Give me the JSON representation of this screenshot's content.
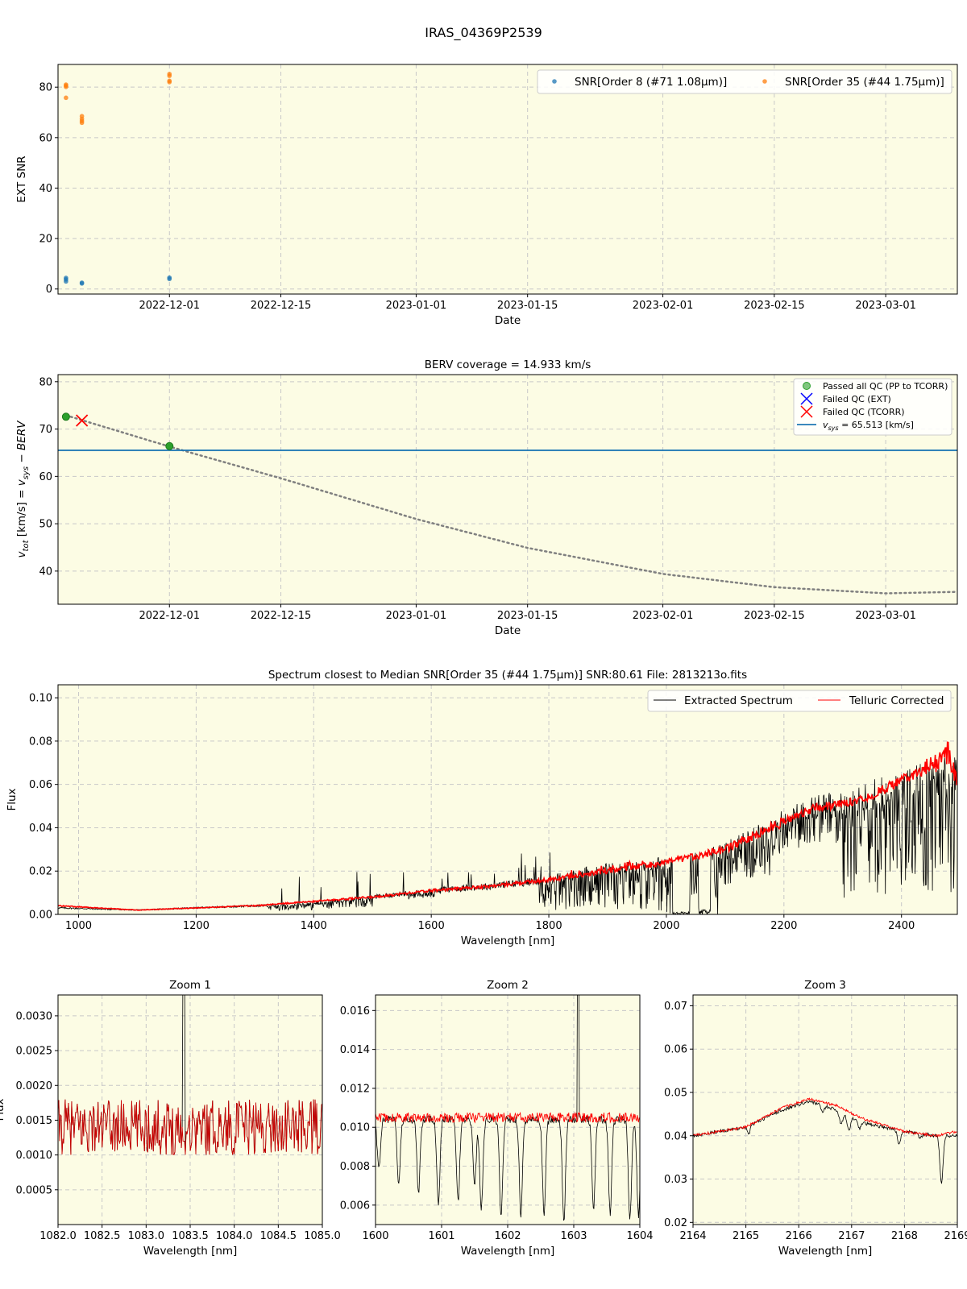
{
  "figure": {
    "title": "IRAS_04369P2539"
  },
  "chart_data": [
    {
      "id": "snr",
      "type": "scatter",
      "title": "",
      "xlabel": "Date",
      "ylabel": "EXT SNR",
      "x_range": [
        "2022-11-17",
        "2023-03-10"
      ],
      "ylim": [
        -2,
        89
      ],
      "x_ticks": [
        "2022-12-01",
        "2022-12-15",
        "2023-01-01",
        "2023-01-15",
        "2023-02-01",
        "2023-02-15",
        "2023-03-01"
      ],
      "y_ticks": [
        0,
        20,
        40,
        60,
        80
      ],
      "grid": true,
      "legend_position": "top-right",
      "series": [
        {
          "name": "SNR[Order 8 (#71 1.08μm)]",
          "color": "#1f77b4",
          "points": [
            [
              "2022-11-18",
              3.0
            ],
            [
              "2022-11-18",
              3.8
            ],
            [
              "2022-11-18",
              4.4
            ],
            [
              "2022-11-20",
              2.2
            ],
            [
              "2022-11-20",
              2.5
            ],
            [
              "2022-12-01",
              4.0
            ],
            [
              "2022-12-01",
              4.5
            ]
          ]
        },
        {
          "name": "SNR[Order 35 (#44 1.75μm)]",
          "color": "#ff7f0e",
          "points": [
            [
              "2022-11-18",
              75.8
            ],
            [
              "2022-11-18",
              80.1
            ],
            [
              "2022-11-18",
              80.6
            ],
            [
              "2022-11-18",
              81.0
            ],
            [
              "2022-11-20",
              65.9
            ],
            [
              "2022-11-20",
              66.6
            ],
            [
              "2022-11-20",
              67.4
            ],
            [
              "2022-11-20",
              68.5
            ],
            [
              "2022-12-01",
              82.0
            ],
            [
              "2022-12-01",
              82.5
            ],
            [
              "2022-12-01",
              84.5
            ],
            [
              "2022-12-01",
              85.2
            ]
          ]
        }
      ]
    },
    {
      "id": "berv",
      "type": "scatter",
      "title": "BERV coverage = 14.933 km/s",
      "xlabel": "Date",
      "ylabel": "v_tot [km/s] = v_sys − BERV",
      "x_range": [
        "2022-11-17",
        "2023-03-10"
      ],
      "ylim": [
        33,
        81.5
      ],
      "x_ticks": [
        "2022-12-01",
        "2022-12-15",
        "2023-01-01",
        "2023-01-15",
        "2023-02-01",
        "2023-02-15",
        "2023-03-01"
      ],
      "y_ticks": [
        40,
        50,
        60,
        70,
        80
      ],
      "grid": true,
      "legend_position": "top-right",
      "v_sys": 65.513,
      "legend": {
        "passed": "Passed all QC (PP to TCORR)",
        "failed_ext": "Failed QC (EXT)",
        "failed_tcorr": "Failed QC (TCORR)",
        "vsys_value": "= 65.513 [km/s]"
      },
      "passed_points": [
        [
          "2022-11-18",
          72.6
        ],
        [
          "2022-12-01",
          66.4
        ]
      ],
      "failed_tcorr_points": [
        [
          "2022-11-20",
          71.8
        ]
      ],
      "berv_curve": [
        [
          "2022-11-18",
          72.9
        ],
        [
          "2022-12-01",
          66.3
        ],
        [
          "2022-12-15",
          59.6
        ],
        [
          "2023-01-01",
          51.0
        ],
        [
          "2023-01-15",
          44.9
        ],
        [
          "2023-02-01",
          39.4
        ],
        [
          "2023-02-15",
          36.6
        ],
        [
          "2023-03-01",
          35.3
        ],
        [
          "2023-03-10",
          35.6
        ]
      ],
      "colors": {
        "passed": "#2ca02c",
        "failed_ext": "#0000ff",
        "failed_tcorr": "#ff0000",
        "vsys": "#1f77b4",
        "curve": "#808080"
      }
    },
    {
      "id": "spectrum",
      "type": "line",
      "title": "Spectrum closest to Median SNR[Order 35 (#44 1.75μm)]     SNR:80.61     File: 2813213o.fits",
      "xlabel": "Wavelength [nm]",
      "ylabel": "Flux",
      "xlim": [
        965,
        2495
      ],
      "ylim": [
        0,
        0.106
      ],
      "x_ticks": [
        1000,
        1200,
        1400,
        1600,
        1800,
        2000,
        2200,
        2400
      ],
      "y_ticks": [
        "0.00",
        "0.02",
        "0.04",
        "0.06",
        "0.08",
        "0.10"
      ],
      "grid": true,
      "legend_position": "top-right",
      "series": [
        {
          "name": "Extracted Spectrum",
          "color": "#000000",
          "continuum": [
            [
              965,
              0.003
            ],
            [
              1100,
              0.002
            ],
            [
              1200,
              0.003
            ],
            [
              1300,
              0.004
            ],
            [
              1400,
              0.005
            ],
            [
              1500,
              0.008
            ],
            [
              1600,
              0.011
            ],
            [
              1700,
              0.013
            ],
            [
              1800,
              0.016
            ],
            [
              1850,
              0.019
            ],
            [
              1900,
              0.021
            ],
            [
              1950,
              0.022
            ],
            [
              2000,
              0.024
            ],
            [
              2050,
              0.026
            ],
            [
              2100,
              0.03
            ],
            [
              2150,
              0.036
            ],
            [
              2200,
              0.044
            ],
            [
              2250,
              0.049
            ],
            [
              2300,
              0.051
            ],
            [
              2350,
              0.055
            ],
            [
              2400,
              0.06
            ],
            [
              2450,
              0.064
            ],
            [
              2495,
              0.065
            ]
          ]
        },
        {
          "name": "Telluric Corrected",
          "color": "#ff0000",
          "continuum": [
            [
              965,
              0.004
            ],
            [
              1100,
              0.002
            ],
            [
              1200,
              0.003
            ],
            [
              1300,
              0.004
            ],
            [
              1400,
              0.006
            ],
            [
              1500,
              0.008
            ],
            [
              1600,
              0.011
            ],
            [
              1700,
              0.013
            ],
            [
              1800,
              0.016
            ],
            [
              1900,
              0.02
            ],
            [
              2000,
              0.024
            ],
            [
              2100,
              0.03
            ],
            [
              2200,
              0.043
            ],
            [
              2250,
              0.049
            ],
            [
              2300,
              0.051
            ],
            [
              2350,
              0.055
            ],
            [
              2400,
              0.062
            ],
            [
              2450,
              0.068
            ],
            [
              2480,
              0.075
            ],
            [
              2495,
              0.06
            ]
          ]
        }
      ]
    },
    {
      "id": "zoom1",
      "type": "line",
      "title": "Zoom 1",
      "xlabel": "Wavelength [nm]",
      "ylabel": "Flux",
      "xlim": [
        1082.0,
        1085.0
      ],
      "ylim": [
        0.0,
        0.0033
      ],
      "x_ticks": [
        "1082.0",
        "1082.5",
        "1083.0",
        "1083.5",
        "1084.0",
        "1084.5",
        "1085.0"
      ],
      "y_ticks": [
        "0.0005",
        "0.0010",
        "0.0015",
        "0.0020",
        "0.0025",
        "0.0030"
      ],
      "grid": true,
      "series": [
        {
          "name": "Extracted Spectrum",
          "color": "#000000",
          "level": 0.0014,
          "scatter": 0.0004,
          "spike_at": 1083.43,
          "spike_to": 0.0033
        },
        {
          "name": "Telluric Corrected",
          "color": "#cc0000",
          "level": 0.0014,
          "scatter": 0.0004
        }
      ]
    },
    {
      "id": "zoom2",
      "type": "line",
      "title": "Zoom 2",
      "xlabel": "Wavelength [nm]",
      "ylabel": "",
      "xlim": [
        1600,
        1604
      ],
      "ylim": [
        0.005,
        0.0168
      ],
      "x_ticks": [
        "1600",
        "1601",
        "1602",
        "1603",
        "1604"
      ],
      "y_ticks": [
        "0.006",
        "0.008",
        "0.010",
        "0.012",
        "0.014",
        "0.016"
      ],
      "grid": true,
      "series": [
        {
          "name": "Extracted Spectrum",
          "color": "#000000",
          "level": 0.0104,
          "scatter": 0.0002,
          "absorption_lines": [
            [
              1600.05,
              0.0078
            ],
            [
              1600.35,
              0.0072
            ],
            [
              1600.65,
              0.0066
            ],
            [
              1600.95,
              0.0061
            ],
            [
              1601.25,
              0.0062
            ],
            [
              1601.5,
              0.0072
            ],
            [
              1601.6,
              0.0058
            ],
            [
              1601.9,
              0.0054
            ],
            [
              1602.2,
              0.0055
            ],
            [
              1602.55,
              0.0056
            ],
            [
              1602.85,
              0.0052
            ],
            [
              1603.3,
              0.0058
            ],
            [
              1603.55,
              0.0056
            ],
            [
              1603.85,
              0.0053
            ],
            [
              1603.98,
              0.0055
            ]
          ],
          "spike_at": 1603.07,
          "spike_to": 0.0168
        },
        {
          "name": "Telluric Corrected",
          "color": "#ff0000",
          "level": 0.0105,
          "scatter": 0.00025
        }
      ]
    },
    {
      "id": "zoom3",
      "type": "line",
      "title": "Zoom 3",
      "xlabel": "Wavelength [nm]",
      "ylabel": "",
      "xlim": [
        2164,
        2169
      ],
      "ylim": [
        0.0195,
        0.0725
      ],
      "x_ticks": [
        "2164",
        "2165",
        "2166",
        "2167",
        "2168",
        "2169"
      ],
      "y_ticks": [
        "0.02",
        "0.03",
        "0.04",
        "0.05",
        "0.06",
        "0.07"
      ],
      "grid": true,
      "series": [
        {
          "name": "Extracted Spectrum",
          "color": "#000000",
          "continuum": [
            [
              2164,
              0.04
            ],
            [
              2165,
              0.042
            ],
            [
              2165.7,
              0.046
            ],
            [
              2166.2,
              0.048
            ],
            [
              2166.7,
              0.046
            ],
            [
              2167.2,
              0.043
            ],
            [
              2168,
              0.041
            ],
            [
              2168.6,
              0.04
            ],
            [
              2169,
              0.04
            ]
          ],
          "absorption_lines": [
            [
              2165.05,
              0.0405
            ],
            [
              2166.45,
              0.0455
            ],
            [
              2166.8,
              0.0425
            ],
            [
              2166.95,
              0.041
            ],
            [
              2167.15,
              0.0415
            ],
            [
              2167.9,
              0.038
            ],
            [
              2168.3,
              0.0395
            ],
            [
              2168.7,
              0.029
            ]
          ]
        },
        {
          "name": "Telluric Corrected",
          "color": "#ff0000",
          "continuum": [
            [
              2164,
              0.04
            ],
            [
              2165,
              0.042
            ],
            [
              2165.7,
              0.0465
            ],
            [
              2166.2,
              0.0485
            ],
            [
              2166.7,
              0.047
            ],
            [
              2167.2,
              0.044
            ],
            [
              2168,
              0.041
            ],
            [
              2168.6,
              0.04
            ],
            [
              2169,
              0.041
            ]
          ]
        }
      ]
    }
  ]
}
